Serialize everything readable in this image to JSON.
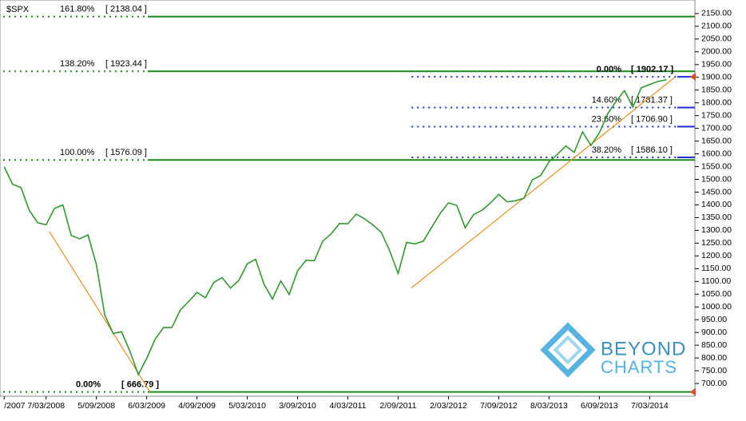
{
  "chart_data": {
    "type": "line",
    "title": "$SPX",
    "x": [
      0,
      1,
      2,
      3,
      4,
      5,
      6,
      7,
      8,
      9,
      10,
      11,
      12,
      13,
      14,
      15,
      16,
      17,
      18,
      19,
      20,
      21,
      22,
      23,
      24,
      25,
      26,
      27,
      28,
      29,
      30,
      31,
      32,
      33,
      34,
      35,
      36,
      37,
      38,
      39,
      40,
      41,
      42,
      43,
      44,
      45,
      46,
      47,
      48,
      49,
      50,
      51,
      52,
      53,
      54,
      55,
      56,
      57,
      58,
      59,
      60,
      61,
      62,
      63,
      64,
      65,
      66,
      67,
      68,
      69,
      70,
      71,
      72,
      73,
      74,
      75,
      76,
      77,
      78,
      79
    ],
    "series": [
      {
        "color": "#2e9a2e",
        "values": [
          1549,
          1481,
          1468,
          1378,
          1330,
          1322,
          1386,
          1400,
          1280,
          1267,
          1282,
          1166,
          968,
          896,
          903,
          826,
          735,
          798,
          873,
          919,
          919,
          987,
          1021,
          1057,
          1036,
          1096,
          1115,
          1074,
          1104,
          1169,
          1187,
          1089,
          1031,
          1102,
          1049,
          1141,
          1183,
          1181,
          1258,
          1286,
          1327,
          1326,
          1364,
          1345,
          1321,
          1292,
          1219,
          1131,
          1253,
          1247,
          1258,
          1312,
          1366,
          1408,
          1398,
          1310,
          1362,
          1379,
          1407,
          1441,
          1412,
          1416,
          1426,
          1498,
          1515,
          1569,
          1598,
          1631,
          1606,
          1686,
          1633,
          1682,
          1757,
          1806,
          1848,
          1783,
          1859,
          1872,
          1884,
          1890
        ]
      }
    ],
    "xlim": [
      -0.5,
      82.4
    ],
    "xticks": [
      {
        "value": 0,
        "label": "/2007"
      },
      {
        "value": 5,
        "label": "7/03/2008"
      },
      {
        "value": 11,
        "label": "5/09/2008"
      },
      {
        "value": 17,
        "label": "6/03/2009"
      },
      {
        "value": 23,
        "label": "4/09/2009"
      },
      {
        "value": 29,
        "label": "5/03/2010"
      },
      {
        "value": 35,
        "label": "3/09/2010"
      },
      {
        "value": 41,
        "label": "4/03/2011"
      },
      {
        "value": 47,
        "label": "2/09/2011"
      },
      {
        "value": 53,
        "label": "2/03/2012"
      },
      {
        "value": 59,
        "label": "7/09/2012"
      },
      {
        "value": 65,
        "label": "8/03/2013"
      },
      {
        "value": 71,
        "label": "6/09/2013"
      },
      {
        "value": 77,
        "label": "7/03/2014"
      }
    ],
    "ylim": [
      650,
      2203
    ],
    "yticks": [
      {
        "value": 700,
        "label": "700.00"
      },
      {
        "value": 750,
        "label": "750.00"
      },
      {
        "value": 800,
        "label": "800.00"
      },
      {
        "value": 850,
        "label": "850.00"
      },
      {
        "value": 900,
        "label": "900.00"
      },
      {
        "value": 950,
        "label": "950.00"
      },
      {
        "value": 1000,
        "label": "1000.00"
      },
      {
        "value": 1050,
        "label": "1050.00"
      },
      {
        "value": 1100,
        "label": "1100.00"
      },
      {
        "value": 1150,
        "label": "1150.00"
      },
      {
        "value": 1200,
        "label": "1200.00"
      },
      {
        "value": 1250,
        "label": "1250.00"
      },
      {
        "value": 1300,
        "label": "1300.00"
      },
      {
        "value": 1350,
        "label": "1350.00"
      },
      {
        "value": 1400,
        "label": "1400.00"
      },
      {
        "value": 1450,
        "label": "1450.00"
      },
      {
        "value": 1500,
        "label": "1500.00"
      },
      {
        "value": 1550,
        "label": "1550.00"
      },
      {
        "value": 1600,
        "label": "1600.00"
      },
      {
        "value": 1650,
        "label": "1650.00"
      },
      {
        "value": 1700,
        "label": "1700.00"
      },
      {
        "value": 1750,
        "label": "1750.00"
      },
      {
        "value": 1800,
        "label": "1800.00"
      },
      {
        "value": 1850,
        "label": "1850.00"
      },
      {
        "value": 1900,
        "label": "1900.00"
      },
      {
        "value": 1950,
        "label": "1950.00"
      },
      {
        "value": 2000,
        "label": "2000.00"
      },
      {
        "value": 2050,
        "label": "2050.00"
      },
      {
        "value": 2100,
        "label": "2100.00"
      },
      {
        "value": 2150,
        "label": "2150.00"
      }
    ],
    "fib_extension": {
      "color": "#1a8a1a",
      "levels": [
        {
          "pct": "161.80%",
          "value": 2138.04,
          "value_label": "[ 2138.04 ]"
        },
        {
          "pct": "138.20%",
          "value": 1923.44,
          "value_label": "[ 1923.44 ]"
        },
        {
          "pct": "100.00%",
          "value": 1576.09,
          "value_label": "[ 1576.09 ]"
        },
        {
          "pct": "0.00%",
          "value": 666.79,
          "value_label": "[ 666.79 ]"
        }
      ]
    },
    "fib_retracement": {
      "color": "#1f2fd0",
      "start_x": 48.6,
      "levels": [
        {
          "pct": "0.00%",
          "value": 1902.17,
          "value_label": "[ 1902.17 ]"
        },
        {
          "pct": "14.60%",
          "value": 1781.37,
          "value_label": "[ 1781.37 ]"
        },
        {
          "pct": "23.60%",
          "value": 1706.9,
          "value_label": "[ 1706.90 ]"
        },
        {
          "pct": "38.20%",
          "value": 1586.1,
          "value_label": "[ 1586.10 ]"
        }
      ]
    },
    "trend_lines": {
      "color": "#f28c1e",
      "lines": [
        {
          "x": [
            5.4,
            17.4
          ],
          "y": [
            1295,
            667
          ]
        },
        {
          "x": [
            48.6,
            80
          ],
          "y": [
            1075,
            1900
          ]
        }
      ]
    },
    "watermark": [
      "BEYOND",
      "CHARTS"
    ]
  }
}
